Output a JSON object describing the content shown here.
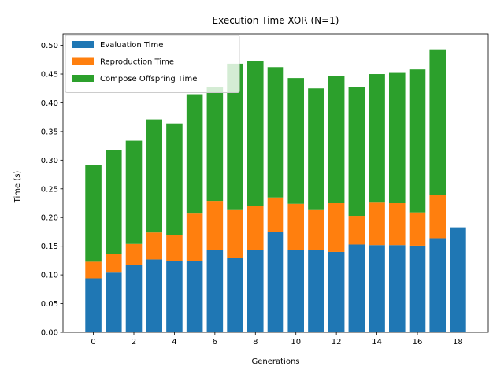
{
  "chart_data": {
    "type": "bar",
    "stacked": true,
    "title": "Execution Time XOR (N=1)",
    "xlabel": "Generations",
    "ylabel": "Time (s)",
    "x": [
      0,
      1,
      2,
      3,
      4,
      5,
      6,
      7,
      8,
      9,
      10,
      11,
      12,
      13,
      14,
      15,
      16,
      17,
      18
    ],
    "xticks": [
      0,
      2,
      4,
      6,
      8,
      10,
      12,
      14,
      16,
      18
    ],
    "xticklabels": [
      "0",
      "2",
      "4",
      "6",
      "8",
      "10",
      "12",
      "14",
      "16",
      "18"
    ],
    "xlim": [
      -1.5,
      19.5
    ],
    "ylim": [
      0,
      0.52
    ],
    "yticks": [
      0.0,
      0.05,
      0.1,
      0.15,
      0.2,
      0.25,
      0.3,
      0.35,
      0.4,
      0.45,
      0.5
    ],
    "yticklabels": [
      "0.00",
      "0.05",
      "0.10",
      "0.15",
      "0.20",
      "0.25",
      "0.30",
      "0.35",
      "0.40",
      "0.45",
      "0.50"
    ],
    "grid": false,
    "legend_position": "top-left",
    "series": [
      {
        "name": "Evaluation Time",
        "color": "#1f77b4",
        "values": [
          0.094,
          0.104,
          0.117,
          0.127,
          0.124,
          0.124,
          0.143,
          0.129,
          0.143,
          0.175,
          0.143,
          0.144,
          0.14,
          0.153,
          0.152,
          0.152,
          0.151,
          0.164,
          0.183
        ]
      },
      {
        "name": "Reproduction Time",
        "color": "#ff7f0e",
        "values": [
          0.029,
          0.033,
          0.037,
          0.047,
          0.046,
          0.083,
          0.086,
          0.084,
          0.077,
          0.06,
          0.081,
          0.069,
          0.085,
          0.05,
          0.074,
          0.073,
          0.058,
          0.075,
          0.0
        ]
      },
      {
        "name": "Compose Offspring Time",
        "color": "#2ca02c",
        "values": [
          0.169,
          0.18,
          0.18,
          0.197,
          0.194,
          0.208,
          0.198,
          0.255,
          0.252,
          0.227,
          0.219,
          0.212,
          0.222,
          0.224,
          0.224,
          0.227,
          0.249,
          0.254,
          0.0
        ]
      }
    ]
  }
}
